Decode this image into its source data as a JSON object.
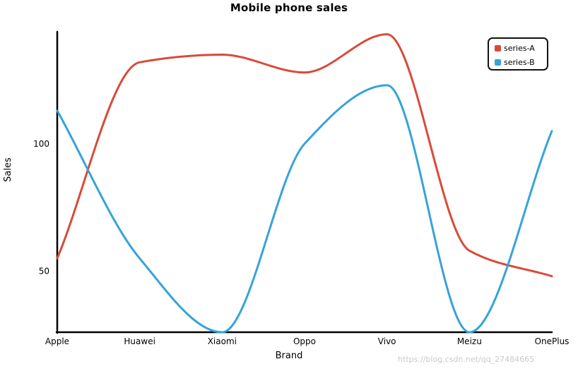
{
  "chart_data": {
    "type": "line",
    "title": "Mobile phone sales",
    "xlabel": "Brand",
    "ylabel": "Sales",
    "categories": [
      "Apple",
      "Huawei",
      "Xiaomi",
      "Oppo",
      "Vivo",
      "Meizu",
      "OnePlus"
    ],
    "yticks": [
      50,
      100
    ],
    "ylim": [
      26,
      144
    ],
    "smooth": true,
    "grid": false,
    "legend_position": "top-right",
    "series": [
      {
        "name": "series-A",
        "color": "#d94a38",
        "values": [
          55,
          132,
          135,
          128,
          143,
          58,
          48
        ]
      },
      {
        "name": "series-B",
        "color": "#36a3d9",
        "values": [
          113,
          55,
          26,
          100,
          123,
          26,
          105
        ]
      }
    ]
  },
  "watermark": "https://blog.csdn.net/qq_27484665"
}
